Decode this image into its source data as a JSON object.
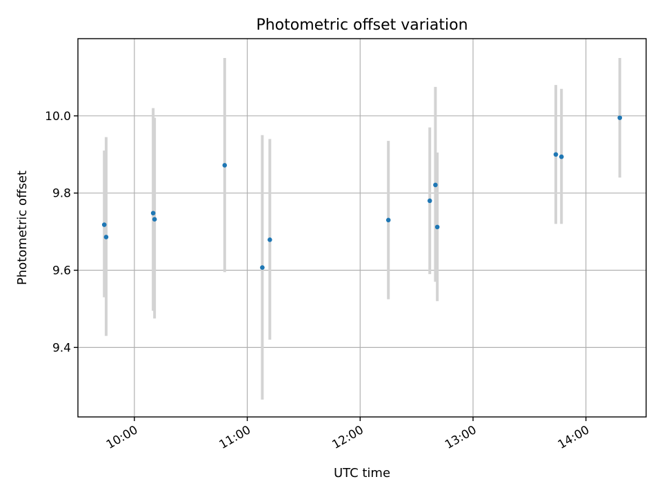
{
  "chart_data": {
    "type": "scatter",
    "title": "Photometric offset variation",
    "xlabel": "UTC time",
    "ylabel": "Photometric offset",
    "xlim": [
      "09:30",
      "14:32"
    ],
    "ylim": [
      9.22,
      10.2
    ],
    "x_ticks": [
      "10:00",
      "11:00",
      "12:00",
      "13:00",
      "14:00"
    ],
    "y_ticks": [
      "9.4",
      "9.6",
      "9.8",
      "10.0"
    ],
    "grid": true,
    "point_color": "#1f77b4",
    "errorbar_color": "#d3d3d3",
    "points": [
      {
        "x": "09:44",
        "y": 9.718,
        "ylow": 9.53,
        "yhigh": 9.91
      },
      {
        "x": "09:45",
        "y": 9.686,
        "ylow": 9.43,
        "yhigh": 9.945
      },
      {
        "x": "10:10",
        "y": 9.748,
        "ylow": 9.495,
        "yhigh": 10.02
      },
      {
        "x": "10:10",
        "y": 9.732,
        "ylow": 9.475,
        "yhigh": 9.995
      },
      {
        "x": "10:48",
        "y": 9.872,
        "ylow": 9.595,
        "yhigh": 10.15
      },
      {
        "x": "11:08",
        "y": 9.607,
        "ylow": 9.265,
        "yhigh": 9.95
      },
      {
        "x": "11:12",
        "y": 9.679,
        "ylow": 9.42,
        "yhigh": 9.94
      },
      {
        "x": "12:15",
        "y": 9.73,
        "ylow": 9.525,
        "yhigh": 9.935
      },
      {
        "x": "12:37",
        "y": 9.78,
        "ylow": 9.59,
        "yhigh": 9.97
      },
      {
        "x": "12:40",
        "y": 9.821,
        "ylow": 9.57,
        "yhigh": 10.075
      },
      {
        "x": "12:41",
        "y": 9.712,
        "ylow": 9.52,
        "yhigh": 9.905
      },
      {
        "x": "13:44",
        "y": 9.9,
        "ylow": 9.72,
        "yhigh": 10.08
      },
      {
        "x": "13:47",
        "y": 9.894,
        "ylow": 9.72,
        "yhigh": 10.07
      },
      {
        "x": "14:18",
        "y": 9.995,
        "ylow": 9.84,
        "yhigh": 10.15
      }
    ]
  }
}
